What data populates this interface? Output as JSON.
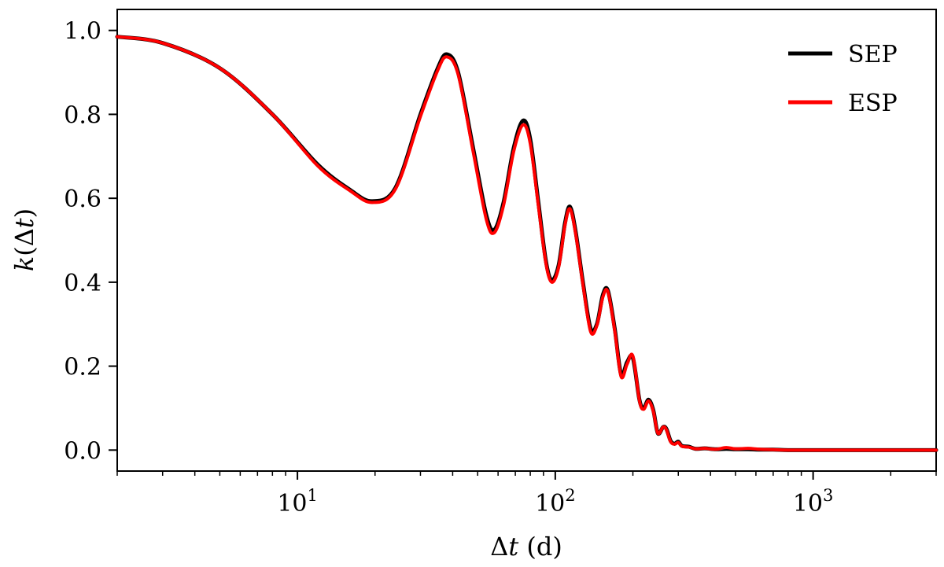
{
  "chart_data": {
    "type": "line",
    "title": "",
    "xlabel": "Δt (d)",
    "ylabel": "k(Δt)",
    "xscale": "log",
    "xlim": [
      2,
      3000
    ],
    "ylim": [
      -0.05,
      1.05
    ],
    "grid": false,
    "legend_position": "top-right",
    "x_ticks": [
      {
        "value": 10,
        "base": "10",
        "exp": "1"
      },
      {
        "value": 100,
        "base": "10",
        "exp": "2"
      },
      {
        "value": 1000,
        "base": "10",
        "exp": "3"
      }
    ],
    "y_ticks": [
      {
        "value": 0.0,
        "label": "0.0"
      },
      {
        "value": 0.2,
        "label": "0.2"
      },
      {
        "value": 0.4,
        "label": "0.4"
      },
      {
        "value": 0.6,
        "label": "0.6"
      },
      {
        "value": 0.8,
        "label": "0.8"
      },
      {
        "value": 1.0,
        "label": "1.0"
      }
    ],
    "series": [
      {
        "name": "SEP",
        "color": "#000000",
        "x": [
          2,
          3,
          5,
          8,
          12,
          16,
          19.5,
          24,
          30,
          35,
          38,
          42,
          48,
          54,
          58,
          63,
          69,
          75,
          80,
          86,
          92,
          97,
          103,
          109,
          114,
          120,
          128,
          137,
          145,
          153,
          160,
          170,
          180,
          190,
          200,
          212,
          220,
          230,
          240,
          250,
          262,
          270,
          280,
          290,
          300,
          310,
          330,
          350,
          380,
          420,
          460,
          500,
          560,
          620,
          700,
          800,
          1000,
          1500,
          2000,
          3000
        ],
        "y": [
          0.985,
          0.97,
          0.91,
          0.8,
          0.68,
          0.62,
          0.593,
          0.625,
          0.8,
          0.91,
          0.943,
          0.9,
          0.72,
          0.56,
          0.525,
          0.59,
          0.72,
          0.785,
          0.74,
          0.59,
          0.45,
          0.405,
          0.44,
          0.54,
          0.58,
          0.52,
          0.4,
          0.29,
          0.3,
          0.37,
          0.38,
          0.29,
          0.18,
          0.21,
          0.22,
          0.12,
          0.1,
          0.12,
          0.095,
          0.04,
          0.055,
          0.05,
          0.022,
          0.015,
          0.02,
          0.01,
          0.008,
          0.003,
          0.004,
          0.002,
          0.003,
          0.002,
          0.002,
          0.001,
          0.001,
          0.0,
          0.0,
          0.0,
          0.0,
          0.0
        ]
      },
      {
        "name": "ESP",
        "color": "#ff0000",
        "x": [
          2,
          3,
          5,
          8,
          12,
          16,
          19.5,
          24,
          30,
          35,
          38,
          42,
          48,
          54,
          58,
          63,
          69,
          75,
          80,
          86,
          92,
          97,
          103,
          109,
          114,
          120,
          128,
          137,
          145,
          153,
          160,
          170,
          180,
          190,
          200,
          212,
          220,
          230,
          240,
          250,
          262,
          270,
          280,
          290,
          300,
          310,
          330,
          350,
          380,
          420,
          460,
          500,
          560,
          620,
          700,
          800,
          1000,
          1500,
          2000,
          3000
        ],
        "y": [
          0.985,
          0.97,
          0.91,
          0.8,
          0.677,
          0.618,
          0.59,
          0.622,
          0.795,
          0.905,
          0.937,
          0.895,
          0.712,
          0.55,
          0.518,
          0.583,
          0.712,
          0.775,
          0.73,
          0.582,
          0.445,
          0.4,
          0.435,
          0.535,
          0.575,
          0.515,
          0.395,
          0.283,
          0.297,
          0.365,
          0.377,
          0.285,
          0.175,
          0.205,
          0.224,
          0.118,
          0.097,
          0.117,
          0.092,
          0.04,
          0.055,
          0.048,
          0.02,
          0.014,
          0.018,
          0.009,
          0.007,
          0.003,
          0.004,
          0.002,
          0.006,
          0.003,
          0.004,
          0.002,
          0.001,
          0.0,
          0.0,
          0.0,
          0.0,
          0.0
        ]
      }
    ]
  }
}
